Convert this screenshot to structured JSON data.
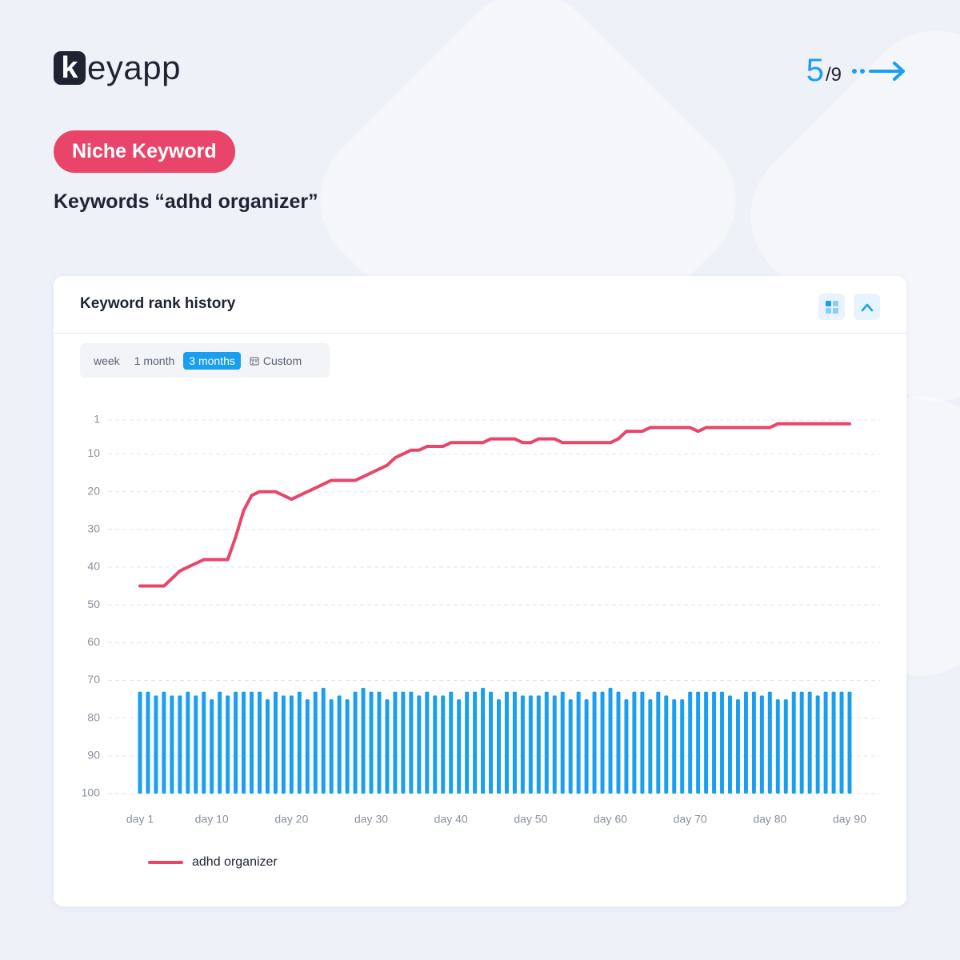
{
  "logo": {
    "mark": "k",
    "text": "eyapp"
  },
  "pager": {
    "current": "5",
    "total": "/9"
  },
  "badge": "Niche Keyword",
  "subtitle": "Keywords “adhd organizer”",
  "card": {
    "title": "Keyword rank history",
    "tabs": [
      "week",
      "1 month",
      "3 months",
      "Custom"
    ],
    "active_tab": 2
  },
  "chart_data": {
    "type": "line",
    "x": [
      1,
      2,
      3,
      4,
      5,
      6,
      7,
      8,
      9,
      10,
      11,
      12,
      13,
      14,
      15,
      16,
      17,
      18,
      19,
      20,
      21,
      22,
      23,
      24,
      25,
      26,
      27,
      28,
      29,
      30,
      31,
      32,
      33,
      34,
      35,
      36,
      37,
      38,
      39,
      40,
      41,
      42,
      43,
      44,
      45,
      46,
      47,
      48,
      49,
      50,
      51,
      52,
      53,
      54,
      55,
      56,
      57,
      58,
      59,
      60,
      61,
      62,
      63,
      64,
      65,
      66,
      67,
      68,
      69,
      70,
      71,
      72,
      73,
      74,
      75,
      76,
      77,
      78,
      79,
      80,
      81,
      82,
      83,
      84,
      85,
      86,
      87,
      88,
      89,
      90
    ],
    "series": [
      {
        "name": "adhd organizer",
        "color": "#e9456a",
        "values": [
          45,
          45,
          45,
          45,
          43,
          41,
          40,
          39,
          38,
          38,
          38,
          38,
          32,
          25,
          21,
          20,
          20,
          20,
          21,
          22,
          21,
          20,
          19,
          18,
          17,
          17,
          17,
          17,
          16,
          15,
          14,
          13,
          11,
          10,
          9,
          9,
          8,
          8,
          8,
          7,
          7,
          7,
          7,
          7,
          6,
          6,
          6,
          6,
          7,
          7,
          6,
          6,
          6,
          7,
          7,
          7,
          7,
          7,
          7,
          7,
          6,
          4,
          4,
          4,
          3,
          3,
          3,
          3,
          3,
          3,
          4,
          3,
          3,
          3,
          3,
          3,
          3,
          3,
          3,
          3,
          2,
          2,
          2,
          2,
          2,
          2,
          2,
          2,
          2,
          2
        ]
      }
    ],
    "bars": {
      "color": "#1a9ff0",
      "values": [
        73,
        73,
        74,
        73,
        74,
        74,
        73,
        74,
        73,
        75,
        73,
        74,
        73,
        73,
        73,
        73,
        75,
        73,
        74,
        74,
        73,
        75,
        73,
        72,
        75,
        74,
        75,
        73,
        72,
        73,
        73,
        75,
        73,
        73,
        73,
        74,
        73,
        74,
        74,
        73,
        75,
        73,
        73,
        72,
        73,
        75,
        73,
        73,
        74,
        74,
        74,
        73,
        74,
        73,
        75,
        73,
        75,
        73,
        73,
        72,
        73,
        75,
        73,
        73,
        75,
        73,
        74,
        75,
        75,
        73,
        73,
        73,
        73,
        73,
        74,
        75,
        73,
        73,
        74,
        73,
        75,
        75,
        73,
        73,
        73,
        74,
        73,
        73,
        73,
        73
      ]
    },
    "xlim": [
      1,
      90
    ],
    "xticks": [
      {
        "value": 1,
        "label": "day 1"
      },
      {
        "value": 10,
        "label": "day 10"
      },
      {
        "value": 20,
        "label": "day 20"
      },
      {
        "value": 30,
        "label": "day 30"
      },
      {
        "value": 40,
        "label": "day 40"
      },
      {
        "value": 50,
        "label": "day 50"
      },
      {
        "value": 60,
        "label": "day 60"
      },
      {
        "value": 70,
        "label": "day 70"
      },
      {
        "value": 80,
        "label": "day 80"
      },
      {
        "value": 90,
        "label": "day 90"
      }
    ],
    "ylim": [
      1,
      100
    ],
    "yticks": [
      1,
      10,
      20,
      30,
      40,
      50,
      60,
      70,
      80,
      90,
      100
    ],
    "y_inverted": true,
    "grid": true
  }
}
